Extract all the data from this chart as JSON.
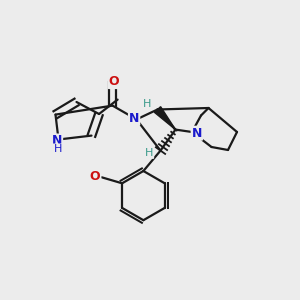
{
  "background_color": "#ececec",
  "figsize": [
    3.0,
    3.0
  ],
  "dpi": 100,
  "xlim": [
    0.0,
    1.0
  ],
  "ylim": [
    0.0,
    1.0
  ],
  "black": "#1a1a1a",
  "blue": "#1a1acc",
  "red": "#cc1010",
  "teal": "#3a9a8a",
  "lw": 1.6
}
